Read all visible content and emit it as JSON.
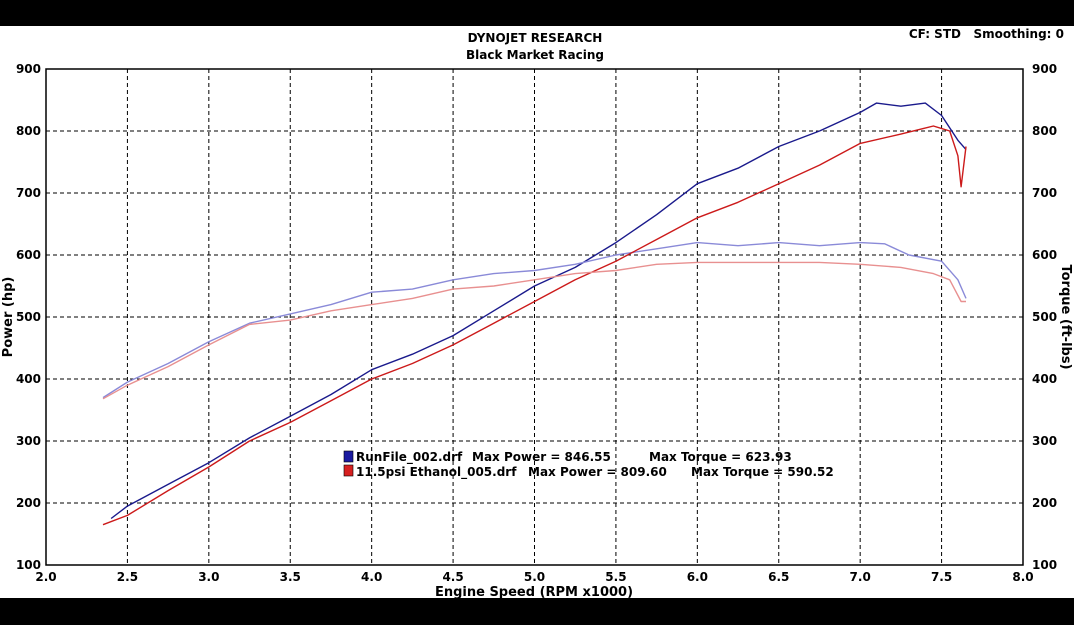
{
  "chart_data": {
    "type": "line",
    "title": "DYNOJET RESEARCH",
    "subtitle": "Black Market Racing",
    "corner_info": "CF: STD   Smoothing: 0",
    "xlabel": "Engine Speed (RPM x1000)",
    "ylabel_left": "Power (hp)",
    "ylabel_right": "Torque (ft-lbs)",
    "xlim": [
      2.0,
      8.0
    ],
    "ylim": [
      100,
      900
    ],
    "x_ticks": [
      "2.0",
      "2.5",
      "3.0",
      "3.5",
      "4.0",
      "4.5",
      "5.0",
      "5.5",
      "6.0",
      "6.5",
      "7.0",
      "7.5",
      "8.0"
    ],
    "y_ticks": [
      "100",
      "200",
      "300",
      "400",
      "500",
      "600",
      "700",
      "800",
      "900"
    ],
    "grid": true,
    "legend_position": "center",
    "legend": [
      {
        "swatch_color": "#1a1aa0",
        "file": "RunFile_002.drf",
        "power_text": "Max Power = 846.55",
        "torque_text": "Max Torque = 623.93"
      },
      {
        "swatch_color": "#d62020",
        "file": "11.5psi Ethanol_005.drf",
        "power_text": "Max Power = 809.60",
        "torque_text": "Max Torque = 590.52"
      }
    ],
    "series": [
      {
        "name": "RunFile_002.drf Power",
        "color": "#1a1a8c",
        "x": [
          2.4,
          2.5,
          2.75,
          3.0,
          3.25,
          3.5,
          3.75,
          4.0,
          4.25,
          4.5,
          4.75,
          5.0,
          5.25,
          5.5,
          5.75,
          6.0,
          6.25,
          6.5,
          6.75,
          7.0,
          7.1,
          7.25,
          7.4,
          7.5,
          7.6,
          7.65
        ],
        "y": [
          175,
          195,
          230,
          265,
          305,
          340,
          375,
          415,
          440,
          470,
          510,
          550,
          580,
          620,
          665,
          715,
          740,
          775,
          800,
          830,
          845,
          840,
          845,
          825,
          785,
          770
        ]
      },
      {
        "name": "RunFile_002.drf Torque",
        "color": "#8a8ad8",
        "x": [
          2.35,
          2.5,
          2.75,
          3.0,
          3.25,
          3.5,
          3.75,
          4.0,
          4.25,
          4.5,
          4.75,
          5.0,
          5.25,
          5.5,
          5.75,
          6.0,
          6.25,
          6.5,
          6.75,
          7.0,
          7.15,
          7.3,
          7.5,
          7.6,
          7.65
        ],
        "y": [
          370,
          395,
          425,
          460,
          490,
          505,
          520,
          540,
          545,
          560,
          570,
          575,
          585,
          600,
          610,
          620,
          615,
          620,
          615,
          620,
          618,
          600,
          590,
          560,
          530
        ]
      },
      {
        "name": "11.5psi Ethanol_005.drf Power",
        "color": "#cc1a1a",
        "x": [
          2.35,
          2.5,
          2.75,
          3.0,
          3.25,
          3.5,
          3.75,
          4.0,
          4.25,
          4.5,
          4.75,
          5.0,
          5.25,
          5.5,
          5.75,
          6.0,
          6.25,
          6.5,
          6.75,
          7.0,
          7.25,
          7.45,
          7.55,
          7.6,
          7.62,
          7.65
        ],
        "y": [
          165,
          180,
          220,
          258,
          300,
          330,
          365,
          400,
          425,
          455,
          490,
          525,
          560,
          590,
          625,
          660,
          685,
          715,
          745,
          780,
          795,
          808,
          800,
          760,
          710,
          775
        ]
      },
      {
        "name": "11.5psi Ethanol_005.drf Torque",
        "color": "#e89090",
        "x": [
          2.35,
          2.5,
          2.75,
          3.0,
          3.25,
          3.5,
          3.75,
          4.0,
          4.25,
          4.5,
          4.75,
          5.0,
          5.25,
          5.5,
          5.75,
          6.0,
          6.25,
          6.5,
          6.75,
          7.0,
          7.25,
          7.45,
          7.55,
          7.62,
          7.65
        ],
        "y": [
          368,
          390,
          420,
          455,
          488,
          495,
          510,
          520,
          530,
          545,
          550,
          560,
          570,
          575,
          585,
          588,
          588,
          588,
          588,
          585,
          580,
          570,
          560,
          525,
          525
        ]
      }
    ]
  }
}
